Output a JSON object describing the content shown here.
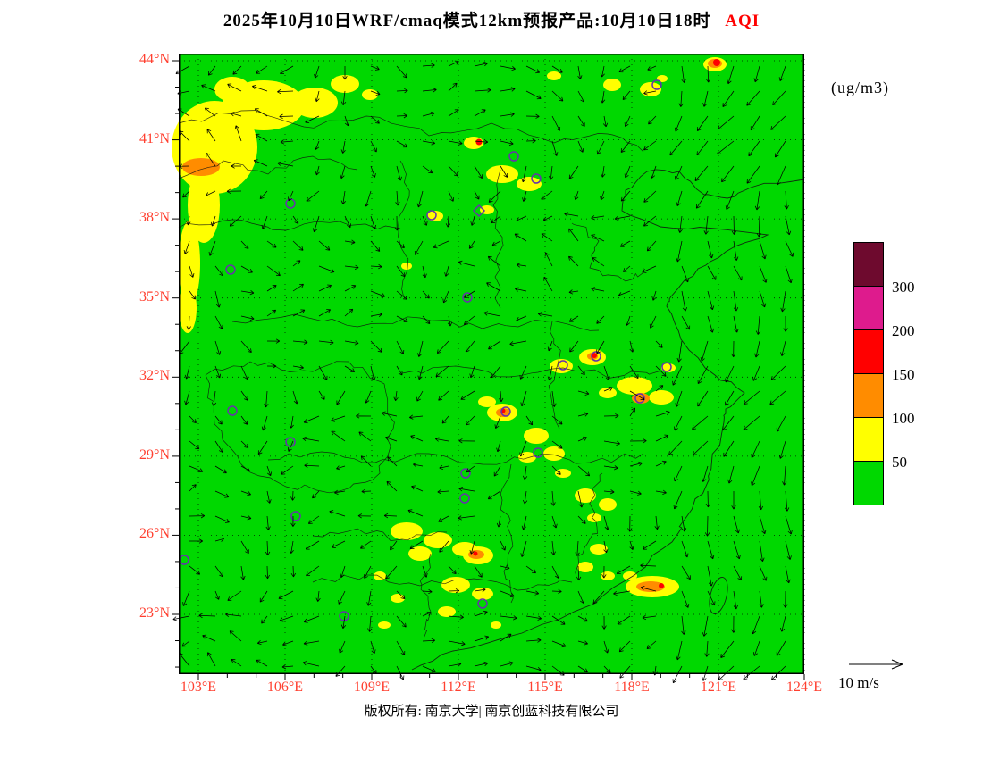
{
  "title": {
    "text": "2025年10月10日WRF/cmaq模式12km预报产品:10月10日18时",
    "variable": "AQI"
  },
  "units_label": "(ug/m3)",
  "axes": {
    "lat_labels": [
      "44°N",
      "41°N",
      "38°N",
      "35°N",
      "32°N",
      "29°N",
      "26°N",
      "23°N"
    ],
    "lon_labels": [
      "103°E",
      "106°E",
      "109°E",
      "112°E",
      "115°E",
      "118°E",
      "121°E",
      "124°E"
    ]
  },
  "colorbar": {
    "tick_labels_top_to_bottom": [
      "300",
      "200",
      "150",
      "100",
      "50"
    ],
    "segment_colors_top_to_bottom": [
      "#6E0A2E",
      "#DE1B8D",
      "#FF0000",
      "#FF8C00",
      "#FFFF00",
      "#00D800"
    ]
  },
  "wind_legend": {
    "label": "10 m/s"
  },
  "footer": {
    "text": "版权所有: 南京大学| 南京创蓝科技有限公司"
  },
  "colors": {
    "axis_labels": "#FF4030",
    "title_variable": "#FF0000",
    "map_background": "#00D800",
    "station_marker": "#6633AA",
    "grid_and_borders": "#000000"
  },
  "chart_data": {
    "type": "heatmap",
    "title": "2025年10月10日WRF/cmaq模式12km预报产品:10月10日18时 AQI",
    "variable": "AQI",
    "units": "ug/m3",
    "model": "WRF/cmaq 12km forecast product",
    "valid_time": "10月10日18时",
    "x_ticks": [
      "103°E",
      "106°E",
      "109°E",
      "112°E",
      "115°E",
      "118°E",
      "121°E",
      "124°E"
    ],
    "y_ticks": [
      "44°N",
      "41°N",
      "38°N",
      "35°N",
      "32°N",
      "29°N",
      "26°N",
      "23°N"
    ],
    "grid": "3-degree dotted graticule",
    "legend_position": "right",
    "color_scale": {
      "breakpoints": [
        50,
        100,
        150,
        200,
        300
      ],
      "bands": [
        {
          "range": "<50",
          "color": "#00D800"
        },
        {
          "range": "50-100",
          "color": "#FFFF00"
        },
        {
          "range": "100-150",
          "color": "#FF8C00"
        },
        {
          "range": "150-200",
          "color": "#FF0000"
        },
        {
          "range": "200-300",
          "color": "#DE1B8D"
        },
        {
          "range": ">300",
          "color": "#6E0A2E"
        }
      ]
    },
    "wind_reference": "10 m/s",
    "overlays": [
      "wind vector field",
      "province boundaries and coastline",
      "station circle markers"
    ],
    "field_summary": "Domain predominantly AQI<50 (green). Yellow 50-100 patches over the northwest (~103-107°E, 39-42°N, with an orange 100-150 core near 103°E/40°N), north-central China (~112-116°E, 37-41°N), the lower Yangtze region (~115-119°E, 31-33°N), south-central China (~109-113°E, 23-27°N) and the southeast coast (~117-119°E, 23-25°N, orange core); a few isolated red 150-200 pixels embedded in these clusters. Strong northerly wind vectors over the eastern seas."
  }
}
